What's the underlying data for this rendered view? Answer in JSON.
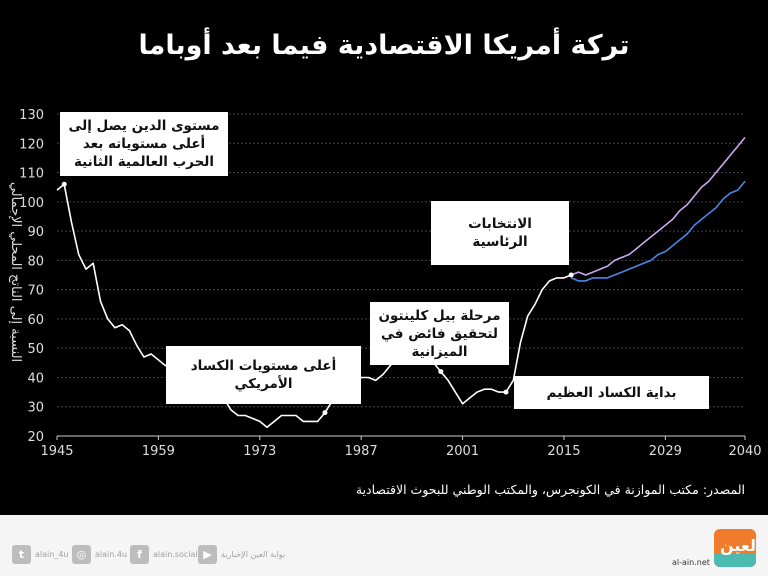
{
  "title": "تركة أمريكا الاقتصادية فيما بعد أوباما",
  "chart": {
    "ylabel": "النسبة إلى الناتج المحلي الإجمالي",
    "source": "المصدر: مكتب الموازنة في الكونجرس، والمكتب الوطني للبحوث الاقتصادية",
    "annotations": [
      {
        "text": "مستوى الدين يصل إلى أعلى مستوياته بعد الحرب العالمية الثانية"
      },
      {
        "text": "أعلى مستويات الكساد الأمريكي"
      },
      {
        "text": "مرحلة بيل كلينتون لتحقيق فائض في الميزانية"
      },
      {
        "text": "الانتخابات الرئاسية"
      },
      {
        "text": "بداية الكساد العظيم"
      }
    ]
  },
  "chart_data": {
    "type": "line",
    "title": "تركة أمريكا الاقتصادية فيما بعد أوباما",
    "xlabel": "",
    "ylabel": "النسبة إلى الناتج المحلي الإجمالي",
    "x_ticks": [
      1945,
      1959,
      1973,
      1987,
      2001,
      2015,
      2029,
      2040
    ],
    "y_ticks": [
      20,
      30,
      40,
      50,
      60,
      70,
      80,
      90,
      100,
      110,
      120,
      130
    ],
    "xlim": [
      1945,
      2040
    ],
    "ylim": [
      20,
      130
    ],
    "grid": true,
    "legend": "none",
    "series": [
      {
        "name": "historical",
        "color": "#ffffff",
        "x": [
          1945,
          1946,
          1947,
          1948,
          1949,
          1950,
          1951,
          1952,
          1953,
          1954,
          1955,
          1956,
          1957,
          1958,
          1959,
          1960,
          1961,
          1962,
          1963,
          1964,
          1965,
          1966,
          1967,
          1968,
          1969,
          1970,
          1971,
          1972,
          1973,
          1974,
          1975,
          1976,
          1977,
          1978,
          1979,
          1980,
          1981,
          1982,
          1983,
          1984,
          1985,
          1986,
          1987,
          1988,
          1989,
          1990,
          1991,
          1992,
          1993,
          1994,
          1995,
          1996,
          1997,
          1998,
          1999,
          2000,
          2001,
          2002,
          2003,
          2004,
          2005,
          2006,
          2007,
          2008,
          2009,
          2010,
          2011,
          2012,
          2013,
          2014,
          2015,
          2016
        ],
        "values": [
          104,
          106,
          93,
          82,
          77,
          79,
          66,
          60,
          57,
          58,
          56,
          51,
          47,
          48,
          46,
          44,
          44,
          43,
          42,
          40,
          38,
          35,
          34,
          33,
          29,
          27,
          27,
          26,
          25,
          23,
          25,
          27,
          27,
          27,
          25,
          25,
          25,
          28,
          32,
          33,
          35,
          38,
          40,
          40,
          39,
          41,
          44,
          47,
          48,
          48,
          48,
          47,
          45,
          42,
          39,
          35,
          31,
          33,
          35,
          36,
          36,
          35,
          35,
          39,
          52,
          61,
          65,
          70,
          73,
          74,
          74,
          75
        ]
      },
      {
        "name": "projection-high",
        "color": "#c9a6ef",
        "x": [
          2016,
          2017,
          2018,
          2019,
          2020,
          2021,
          2022,
          2023,
          2024,
          2025,
          2026,
          2027,
          2028,
          2029,
          2030,
          2031,
          2032,
          2033,
          2034,
          2035,
          2036,
          2037,
          2038,
          2039,
          2040
        ],
        "values": [
          75,
          76,
          75,
          76,
          77,
          78,
          80,
          81,
          82,
          84,
          86,
          88,
          90,
          92,
          94,
          97,
          99,
          102,
          105,
          107,
          110,
          113,
          116,
          119,
          122
        ]
      },
      {
        "name": "projection-base",
        "color": "#4a86e8",
        "x": [
          2016,
          2017,
          2018,
          2019,
          2020,
          2021,
          2022,
          2023,
          2024,
          2025,
          2026,
          2027,
          2028,
          2029,
          2030,
          2031,
          2032,
          2033,
          2034,
          2035,
          2036,
          2037,
          2038,
          2039,
          2040
        ],
        "values": [
          74,
          73,
          73,
          74,
          74,
          74,
          75,
          76,
          77,
          78,
          79,
          80,
          82,
          83,
          85,
          87,
          89,
          92,
          94,
          96,
          98,
          101,
          103,
          104,
          107
        ]
      }
    ],
    "annotations": [
      {
        "text": "مستوى الدين يصل إلى أعلى مستوياته بعد الحرب العالمية الثانية",
        "x": 1946,
        "y": 106
      },
      {
        "text": "أعلى مستويات الكساد الأمريكي",
        "x": 1982,
        "y": 28
      },
      {
        "text": "مرحلة بيل كلينتون لتحقيق فائض في الميزانية",
        "x": 1998,
        "y": 42
      },
      {
        "text": "الانتخابات الرئاسية",
        "x": 2016,
        "y": 75
      },
      {
        "text": "بداية الكساد العظيم",
        "x": 2007,
        "y": 35
      }
    ],
    "source": "المصدر: مكتب الموازنة في الكونجرس، والمكتب الوطني للبحوث الاقتصادية"
  },
  "footer": {
    "social": [
      {
        "icon": "twitter-icon",
        "glyph": "t",
        "label": "alain_4u"
      },
      {
        "icon": "instagram-icon",
        "glyph": "◎",
        "label": "alain.4u"
      },
      {
        "icon": "facebook-icon",
        "glyph": "f",
        "label": "alain.social"
      },
      {
        "icon": "youtube-icon",
        "glyph": "▶",
        "label": "بوابة العين الإخبارية"
      }
    ],
    "site": "al-ain.net",
    "logo_text": "العين"
  }
}
